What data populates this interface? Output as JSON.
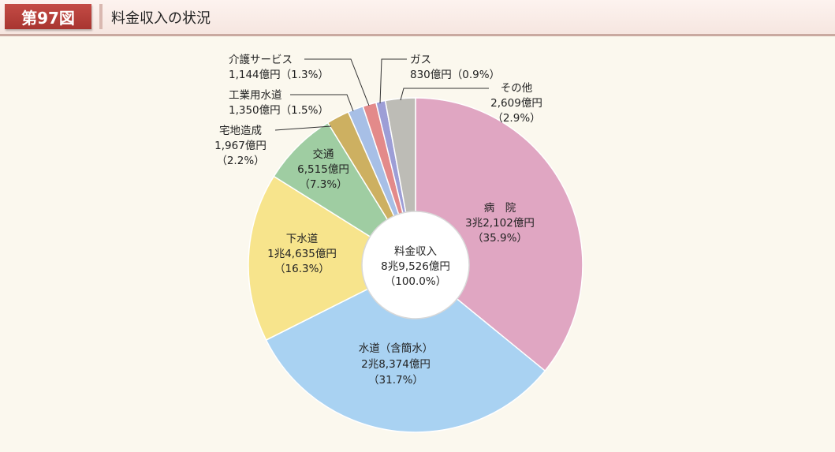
{
  "header": {
    "figure_label": "第97図",
    "title": "料金収入の状況"
  },
  "chart_data": {
    "type": "pie",
    "total": {
      "name": "料金収入",
      "amount": "8兆9,526億円",
      "percent": "（100.0%）",
      "percent_value": 100.0
    },
    "slices": [
      {
        "key": "hospital",
        "name": "病　院",
        "amount": "3兆2,102億円",
        "percent": "（35.9%）",
        "value": 35.9,
        "color": "#e0a6c2"
      },
      {
        "key": "water",
        "name": "水道（含簡水）",
        "amount": "2兆8,374億円",
        "percent": "（31.7%）",
        "value": 31.7,
        "color": "#a9d2f2"
      },
      {
        "key": "sewer",
        "name": "下水道",
        "amount": "1兆4,635億円",
        "percent": "（16.3%）",
        "value": 16.3,
        "color": "#f7e48c"
      },
      {
        "key": "transport",
        "name": "交通",
        "amount": "6,515億円",
        "percent": "（7.3%）",
        "value": 7.3,
        "color": "#9fcda2"
      },
      {
        "key": "housing",
        "name": "宅地造成",
        "amount": "1,967億円",
        "percent": "（2.2%）",
        "value": 2.2,
        "color": "#cdb061"
      },
      {
        "key": "industrial_water",
        "name": "工業用水道",
        "amount": "1,350億円",
        "percent": "（1.5%）",
        "value": 1.5,
        "color": "#a7bfe6"
      },
      {
        "key": "care",
        "name": "介護サービス",
        "amount": "1,144億円",
        "percent": "（1.3%）",
        "value": 1.3,
        "color": "#e38a8a"
      },
      {
        "key": "gas",
        "name": "ガス",
        "amount": "830億円",
        "percent": "（0.9%）",
        "value": 0.9,
        "color": "#9d9ed6"
      },
      {
        "key": "other",
        "name": "その他",
        "amount": "2,609億円",
        "percent": "（2.9%）",
        "value": 2.9,
        "color": "#bdbcb6"
      }
    ]
  }
}
